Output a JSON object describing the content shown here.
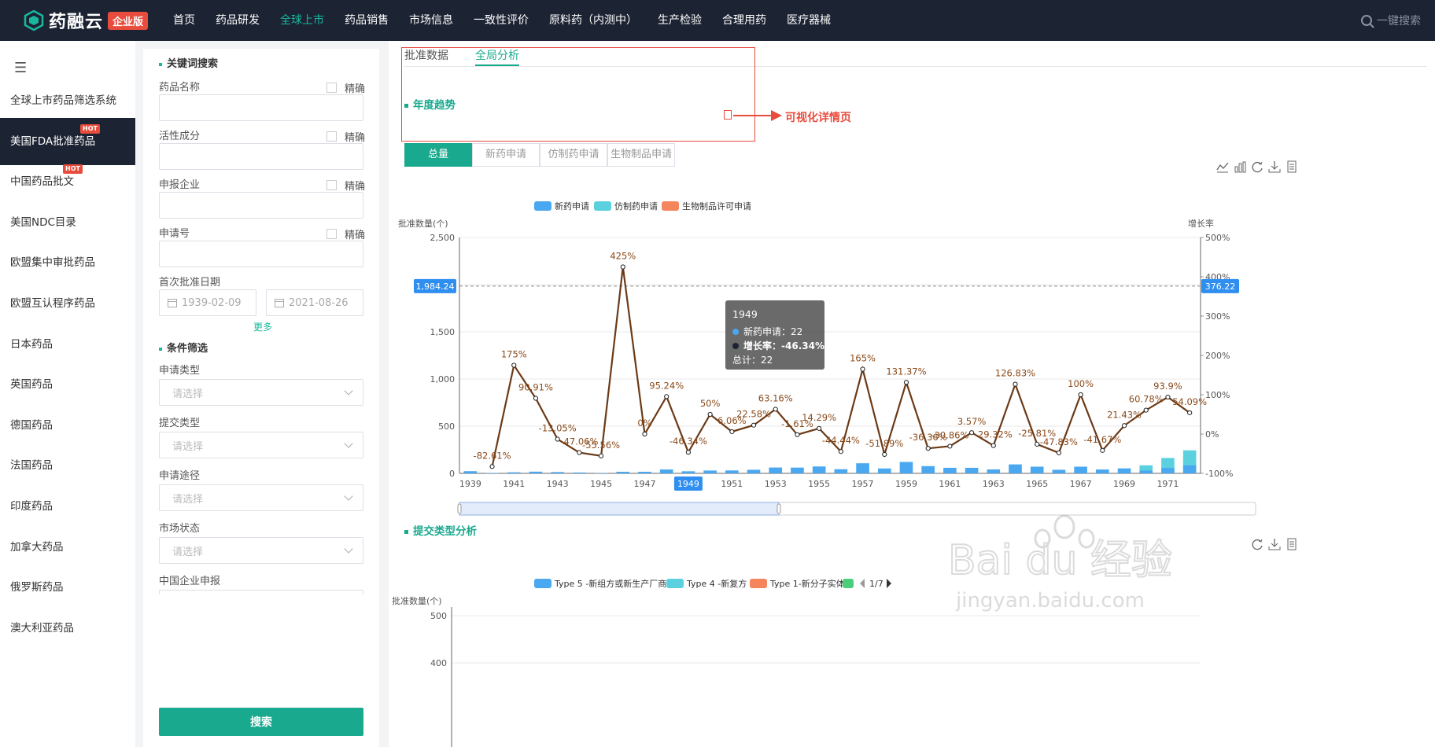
{
  "app": {
    "logo_text": "药融云",
    "edition": "企业版"
  },
  "nav": [
    {
      "label": "首页"
    },
    {
      "label": "药品研发"
    },
    {
      "label": "全球上市"
    },
    {
      "label": "药品销售"
    },
    {
      "label": "市场信息"
    },
    {
      "label": "一致性评价"
    },
    {
      "label": "原料药（内测中）"
    },
    {
      "label": "生产检验"
    },
    {
      "label": "合理用药"
    },
    {
      "label": "医疗器械"
    }
  ],
  "nav_active": "全球上市",
  "search_label": "一键搜索",
  "sidebar": {
    "menu_icon": "hamburger-icon",
    "items": [
      {
        "label": "全球上市药品筛选系统"
      },
      {
        "label": "美国FDA批准药品",
        "hot": "HOT",
        "active": true
      },
      {
        "label": "中国药品批文",
        "hot": "HOT"
      },
      {
        "label": "美国NDC目录"
      },
      {
        "label": "欧盟集中审批药品"
      },
      {
        "label": "欧盟互认程序药品"
      },
      {
        "label": "日本药品"
      },
      {
        "label": "英国药品"
      },
      {
        "label": "德国药品"
      },
      {
        "label": "法国药品"
      },
      {
        "label": "印度药品"
      },
      {
        "label": "加拿大药品"
      },
      {
        "label": "俄罗斯药品"
      },
      {
        "label": "澳大利亚药品"
      }
    ]
  },
  "filter": {
    "keyword_title": "关键词搜索",
    "exact": "精确",
    "drug_name": "药品名称",
    "active_ingredient": "活性成分",
    "applicant": "申报企业",
    "application_no": "申请号",
    "first_approval_date": "首次批准日期",
    "date_from": "1939-02-09",
    "date_to": "2021-08-26",
    "more": "更多",
    "cond_title": "条件筛选",
    "select_placeholder": "请选择",
    "app_type": "申请类型",
    "submit_type": "提交类型",
    "app_route": "申请途径",
    "market_status": "市场状态",
    "cn_company": "中国企业申报",
    "search_btn": "搜索"
  },
  "tabs": [
    {
      "label": "批准数据"
    },
    {
      "label": "全局分析"
    }
  ],
  "annual": {
    "title": "年度趋势",
    "btabs": [
      {
        "label": "总量"
      },
      {
        "label": "新药申请"
      },
      {
        "label": "仿制药申请"
      },
      {
        "label": "生物制品申请"
      }
    ]
  },
  "annotation": {
    "label": "可视化详情页"
  },
  "chart_data": {
    "type": "bar",
    "legend": [
      "新药申请",
      "仿制药申请",
      "生物制品许可申请"
    ],
    "legend_colors": [
      "#4aa8f0",
      "#5bd1e0",
      "#f5855c"
    ],
    "y_left_label": "批准数量(个)",
    "y_right_label": "增长率",
    "y_left_ticks": [
      "0",
      "500",
      "1,000",
      "1,500",
      "2,500"
    ],
    "y_right_ticks": [
      "-100%",
      "0%",
      "100%",
      "200%",
      "300%",
      "400%",
      "500%"
    ],
    "ylim_left": [
      0,
      2500
    ],
    "ylim_right": [
      -100,
      500
    ],
    "x": [
      1939,
      1940,
      1941,
      1942,
      1943,
      1944,
      1945,
      1946,
      1947,
      1948,
      1949,
      1950,
      1951,
      1952,
      1953,
      1954,
      1955,
      1956,
      1957,
      1958,
      1959,
      1960,
      1961,
      1962,
      1963,
      1964,
      1965,
      1966,
      1967,
      1968,
      1969,
      1970,
      1971,
      1972
    ],
    "x_tick_labels": [
      "1939",
      "1941",
      "1943",
      "1945",
      "1947",
      "1949",
      "1951",
      "1953",
      "1955",
      "1957",
      "1959",
      "1961",
      "1963",
      "1965",
      "1967",
      "1969",
      "1971"
    ],
    "series": [
      {
        "name": "新药申请",
        "values": [
          23,
          4,
          11,
          18,
          14,
          9,
          4,
          17,
          17,
          41,
          22,
          30,
          31,
          38,
          62,
          61,
          73,
          44,
          107,
          52,
          121,
          77,
          59,
          59,
          42,
          95,
          71,
          38,
          71,
          41,
          53,
          85,
          163,
          244
        ]
      },
      {
        "name": "增长率",
        "values": [
          null,
          -82.61,
          175,
          90.91,
          -13.05,
          -47.06,
          -55.56,
          425,
          0,
          95.24,
          -46.34,
          50,
          6.06,
          22.58,
          63.16,
          -1.61,
          14.29,
          -44.44,
          165,
          -51.89,
          131.37,
          -36.36,
          -30.86,
          3.57,
          -29.32,
          126.83,
          -25.81,
          -47.83,
          100,
          -41.67,
          21.43,
          60.78,
          93.9,
          54.09
        ],
        "labels": [
          "",
          "-82.61%",
          "175%",
          "90.91%",
          "-13.05%",
          "-47.06%",
          "-55.56%",
          "425%",
          "0%",
          "95.24%",
          "-46.34%",
          "50%",
          "6.06%",
          "22.58%",
          "63.16%",
          "-1.61%",
          "14.29%",
          "-44.44%",
          "165%",
          "-51.89%",
          "131.37%",
          "-36.36%",
          "-30.86%",
          "3.57%",
          "-29.32%",
          "126.83%",
          "-25.81%",
          "-47.83%",
          "100%",
          "-41.67%",
          "21.43%",
          "60.78%",
          "93.9%",
          "54.09%"
        ]
      }
    ],
    "crosshair_left": "1,984.24",
    "crosshair_right": "376.22",
    "highlight_x": "1949",
    "tooltip": {
      "year": "1949",
      "row1_label": "新药申请：",
      "row1_value": "22",
      "row2_label": "增长率：",
      "row2_value": "-46.34%",
      "total_label": "总计：",
      "total_value": "22"
    }
  },
  "submit_analysis": {
    "title": "提交类型分析",
    "legend": [
      "Type 5 -新组方或新生产厂商",
      "Type 4 -新复方",
      "Type 1-新分子实体"
    ],
    "legend_colors": [
      "#4aa8f0",
      "#5bd1e0",
      "#f5855c",
      "#4ccd79"
    ],
    "page": "1/7",
    "y_label": "批准数量(个)",
    "y_ticks": [
      "500",
      "400"
    ]
  },
  "watermark": {
    "text": "Bai du 经验",
    "url": "jingyan.baidu.com"
  }
}
